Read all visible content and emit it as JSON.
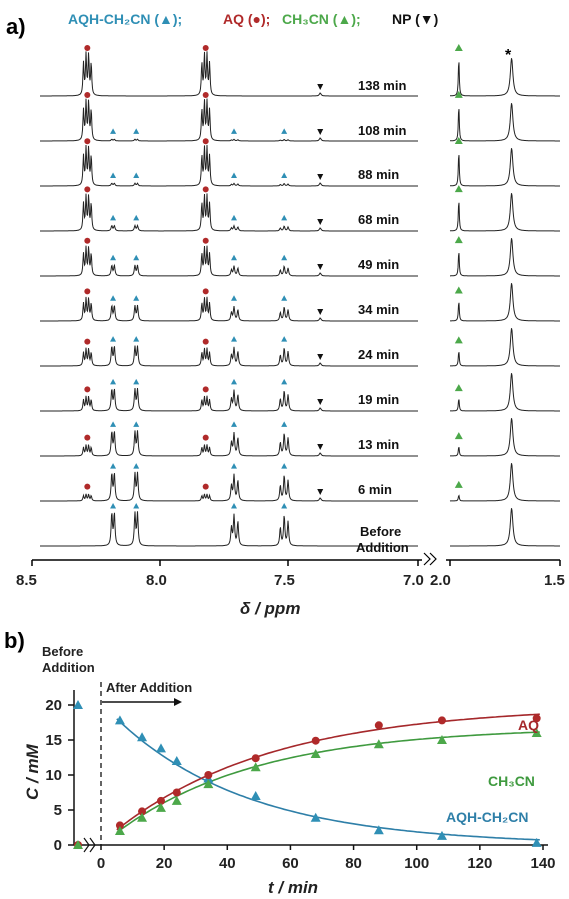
{
  "colors": {
    "aqh": "#2f8fb5",
    "aq": "#b02a2a",
    "ch3cn": "#4ca84a",
    "np": "#111111",
    "trace": "#222222",
    "fit_aqh": "#2e7fa8",
    "fit_aq": "#a5282b",
    "fit_ch3cn": "#3f9a3f"
  },
  "panel_a": {
    "label": "a)",
    "legend": [
      {
        "text": "AQH-CH₂CN (▲);",
        "color": "#2f8fb5"
      },
      {
        "text": "AQ (●);",
        "color": "#b02a2a"
      },
      {
        "text": "CH₃CN (▲);",
        "color": "#4ca84a"
      },
      {
        "text": "NP (▼)",
        "color": "#111111"
      }
    ],
    "times": [
      "138 min",
      "108 min",
      "88 min",
      "68 min",
      "49 min",
      "34 min",
      "24 min",
      "19 min",
      "13 min",
      "6 min"
    ],
    "before_label_1": "Before",
    "before_label_2": "Addition",
    "asterisk": "*",
    "axis_left_ticks": [
      "8.5",
      "8.0",
      "7.5",
      "7.0"
    ],
    "axis_right_ticks": [
      "2.0",
      "1.5"
    ],
    "xlabel": "δ / ppm"
  },
  "panel_b": {
    "label": "b)",
    "before_label_1": "Before",
    "before_label_2": "Addition",
    "after_label": "After Addition",
    "ylabel": "C / mM",
    "xlabel": "t / min",
    "series_labels": {
      "aq": "AQ",
      "ch3cn": "CH₃CN",
      "aqh": "AQH-CH₂CN"
    }
  },
  "chart_data": [
    {
      "type": "line",
      "title": "",
      "description_of_panel": "",
      "x_range_ppm": [
        [
          8.5,
          7.0
        ],
        [
          2.0,
          1.5
        ]
      ],
      "xlabel": "δ / ppm",
      "traces": [
        "Before Addition",
        "6 min",
        "13 min",
        "19 min",
        "24 min",
        "34 min",
        "49 min",
        "68 min",
        "88 min",
        "108 min",
        "138 min"
      ]
    },
    {
      "type": "scatter",
      "xlabel": "t / min",
      "ylabel": "C / mM",
      "xlim": [
        -10,
        140
      ],
      "ylim": [
        0,
        22
      ],
      "xticks": [
        0,
        20,
        40,
        60,
        80,
        100,
        120,
        140
      ],
      "yticks": [
        0,
        5,
        10,
        15,
        20
      ],
      "series": [
        {
          "name": "AQH-CH₂CN",
          "marker": "triangle",
          "color": "#2f8fb5",
          "points": [
            [
              -8,
              20
            ],
            [
              6,
              17.8
            ],
            [
              13,
              15.4
            ],
            [
              19,
              13.8
            ],
            [
              24,
              12.0
            ],
            [
              34,
              9.5
            ],
            [
              49,
              7.0
            ],
            [
              68,
              3.9
            ],
            [
              88,
              2.1
            ],
            [
              108,
              1.3
            ],
            [
              138,
              0.3
            ]
          ]
        },
        {
          "name": "AQ",
          "marker": "circle",
          "color": "#b02a2a",
          "points": [
            [
              -8,
              0
            ],
            [
              6,
              2.8
            ],
            [
              13,
              4.8
            ],
            [
              19,
              6.3
            ],
            [
              24,
              7.5
            ],
            [
              34,
              10.0
            ],
            [
              49,
              12.4
            ],
            [
              68,
              14.9
            ],
            [
              88,
              17.1
            ],
            [
              108,
              17.8
            ],
            [
              138,
              18.1
            ]
          ]
        },
        {
          "name": "CH₃CN",
          "marker": "triangle",
          "color": "#4ca84a",
          "points": [
            [
              -8,
              0
            ],
            [
              6,
              2.0
            ],
            [
              13,
              3.9
            ],
            [
              19,
              5.3
            ],
            [
              24,
              6.3
            ],
            [
              34,
              8.7
            ],
            [
              49,
              11.1
            ],
            [
              68,
              13.0
            ],
            [
              88,
              14.4
            ],
            [
              108,
              15.0
            ],
            [
              138,
              16.0
            ]
          ]
        }
      ],
      "fits": [
        {
          "series": "AQH-CH₂CN",
          "model": "y = 20.3*exp(-(t-0)/42) approx"
        },
        {
          "series": "AQ",
          "model": "rising exponential to ~19.5"
        },
        {
          "series": "CH₃CN",
          "model": "rising exponential to ~16.8"
        }
      ]
    }
  ]
}
